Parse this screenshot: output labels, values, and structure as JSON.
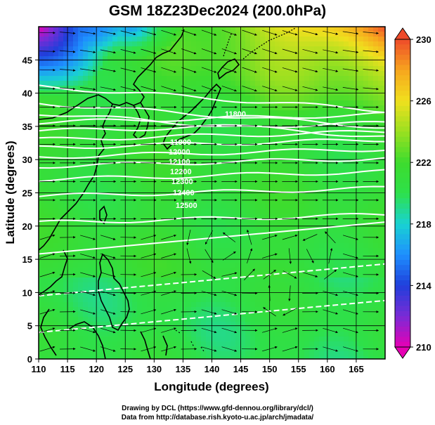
{
  "title": "GSM 18Z23Dec2024 (200.0hPa)",
  "xlabel": "Longitude (degrees)",
  "ylabel": "Latitude  (degrees)",
  "credits": {
    "line1": "Drawing by DCL (https://www.gfd-dennou.org/library/dcl/)",
    "line2": "Data from http://database.rish.kyoto-u.ac.jp/arch/jmadata/"
  },
  "chart_data": {
    "type": "heatmap",
    "xlim": [
      110,
      170
    ],
    "ylim": [
      0,
      50
    ],
    "x_ticks": [
      110,
      115,
      120,
      125,
      130,
      135,
      140,
      145,
      150,
      155,
      160,
      165
    ],
    "y_ticks": [
      0,
      5,
      10,
      15,
      20,
      25,
      30,
      35,
      40,
      45
    ],
    "grid": true,
    "colorbar": {
      "min": 210,
      "max": 230,
      "ticks": [
        210,
        214,
        218,
        222,
        226,
        230
      ],
      "colors": [
        "#e600b4",
        "#7a2bd6",
        "#1f3fdb",
        "#1e90ff",
        "#19d2d2",
        "#2ee04a",
        "#3ddc2e",
        "#9be020",
        "#f0e01e",
        "#f7a51e",
        "#ee4a2a"
      ]
    },
    "contour_labels": [
      "11800",
      "11900",
      "12000",
      "12100",
      "12200",
      "12300",
      "12400",
      "12500"
    ]
  },
  "colors": {
    "contour": "#ffffff",
    "coast": "#000000",
    "vector": "#000000"
  }
}
